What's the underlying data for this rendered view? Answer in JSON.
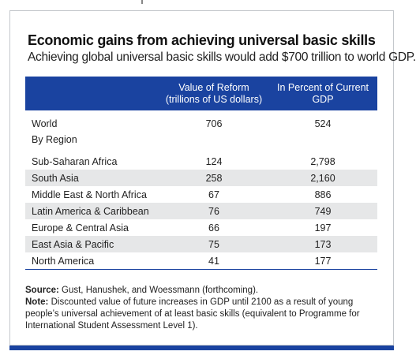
{
  "title": "Economic gains from achieving universal basic skills",
  "subtitle": "Achieving global universal basic skills would add $700 trillion to world GDP.",
  "chart_data": {
    "type": "table",
    "columns": [
      "",
      "Value of Reform\n(trillions of US dollars)",
      "In Percent of Current GDP"
    ],
    "world": {
      "label": "World",
      "value": "706",
      "percent": "524"
    },
    "section_label": "By Region",
    "rows": [
      {
        "region": "Sub-Saharan Africa",
        "value": "124",
        "percent": "2,798"
      },
      {
        "region": "South Asia",
        "value": "258",
        "percent": "2,160"
      },
      {
        "region": "Middle East & North Africa",
        "value": "67",
        "percent": "886"
      },
      {
        "region": "Latin America & Caribbean",
        "value": "76",
        "percent": "749"
      },
      {
        "region": "Europe & Central Asia",
        "value": "66",
        "percent": "197"
      },
      {
        "region": "East Asia & Pacific",
        "value": "75",
        "percent": "173"
      },
      {
        "region": "North America",
        "value": "41",
        "percent": "177"
      }
    ]
  },
  "notes": {
    "source_label": "Source:",
    "source_text": " Gust, Hanushek, and Woessmann (forthcoming).",
    "note_label": "Note:",
    "note_text": " Discounted value of future increases in GDP until 2100 as a result of young people’s universal achievement of at least basic skills (equivalent to Programme for International Student Assessment Level 1)."
  },
  "colors": {
    "accent": "#1a43a0",
    "row_shade": "#e6e7e8"
  }
}
